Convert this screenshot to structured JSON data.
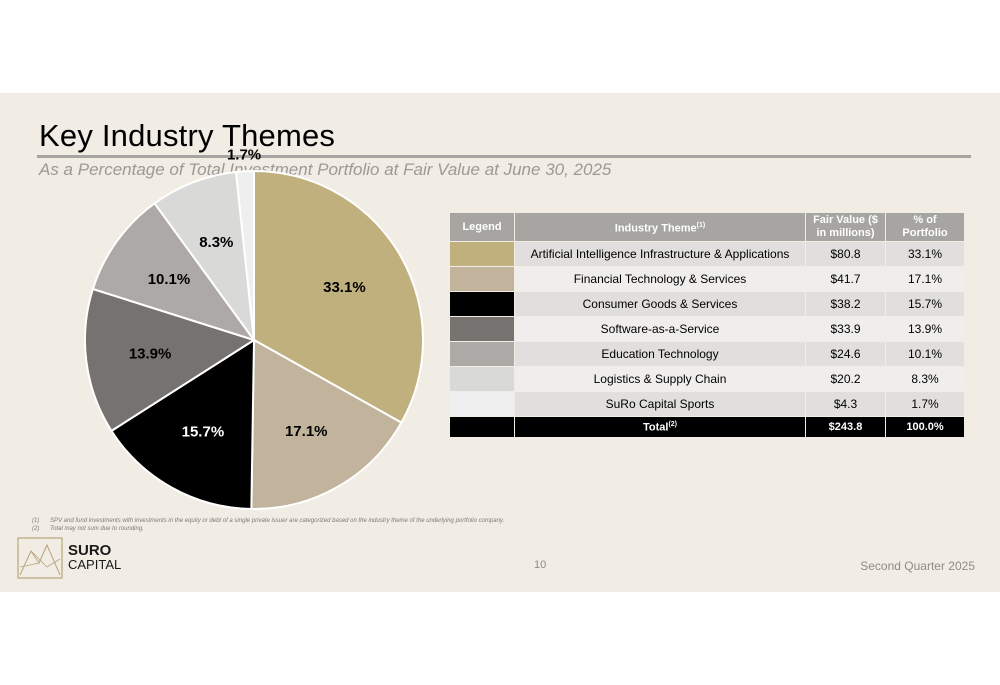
{
  "header": {
    "title": "Key Industry Themes",
    "subtitle": "As a Percentage of Total Investment Portfolio at Fair Value at June 30, 2025"
  },
  "chart_data": {
    "type": "pie",
    "categories": [
      "Artificial Intelligence Infrastructure & Applications",
      "Financial Technology & Services",
      "Consumer Goods & Services",
      "Software-as-a-Service",
      "Education Technology",
      "Logistics & Supply Chain",
      "SuRo Capital Sports"
    ],
    "values": [
      33.1,
      17.1,
      15.7,
      13.9,
      10.1,
      8.3,
      1.7
    ],
    "labels": [
      "33.1%",
      "17.1%",
      "15.7%",
      "13.9%",
      "10.1%",
      "8.3%",
      "1.7%"
    ],
    "colors": [
      "#c0b07e",
      "#c2b49c",
      "#000000",
      "#767270",
      "#ada9a7",
      "#d9d9d8",
      "#efefef"
    ],
    "label_colors": [
      "dark",
      "dark",
      "light",
      "dark",
      "dark",
      "dark",
      "dark"
    ]
  },
  "table": {
    "headers": {
      "legend": "Legend",
      "theme": "Industry Theme",
      "theme_sup": "(1)",
      "fair_value": "Fair Value",
      "fair_value_sub": "($ in millions)",
      "pct_line1": "% of",
      "pct_line2": "Portfolio"
    },
    "rows": [
      {
        "theme": "Artificial Intelligence Infrastructure & Applications",
        "fair_value": "$80.8",
        "pct": "33.1%",
        "color": "#c0b07e"
      },
      {
        "theme": "Financial Technology & Services",
        "fair_value": "$41.7",
        "pct": "17.1%",
        "color": "#c2b49c"
      },
      {
        "theme": "Consumer Goods & Services",
        "fair_value": "$38.2",
        "pct": "15.7%",
        "color": "#000000"
      },
      {
        "theme": "Software-as-a-Service",
        "fair_value": "$33.9",
        "pct": "13.9%",
        "color": "#767270"
      },
      {
        "theme": "Education Technology",
        "fair_value": "$24.6",
        "pct": "10.1%",
        "color": "#ada9a7"
      },
      {
        "theme": "Logistics & Supply Chain",
        "fair_value": "$20.2",
        "pct": "8.3%",
        "color": "#d9d9d8"
      },
      {
        "theme": "SuRo Capital Sports",
        "fair_value": "$4.3",
        "pct": "1.7%",
        "color": "#efefef"
      }
    ],
    "total": {
      "label": "Total",
      "label_sup": "(2)",
      "fair_value": "$243.8",
      "pct": "100.0%"
    }
  },
  "footnotes": [
    {
      "num": "(1)",
      "text": "SPV and fund investments with investments in the equity or debt of a single private issuer are categorized based on the industry theme of the underlying portfolio company."
    },
    {
      "num": "(2)",
      "text": "Total may not sum due to rounding."
    }
  ],
  "footer": {
    "logo_line1": "SURO",
    "logo_line2": "CAPITAL",
    "page_number": "10",
    "period": "Second Quarter 2025"
  }
}
